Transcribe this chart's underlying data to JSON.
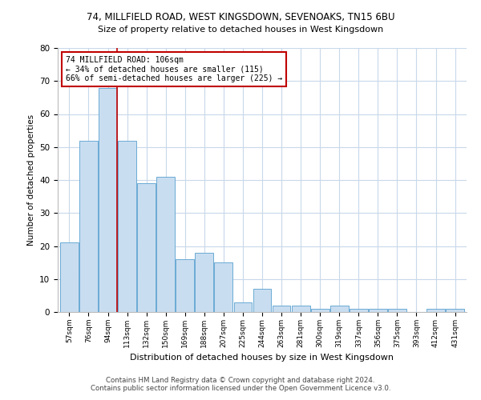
{
  "title1": "74, MILLFIELD ROAD, WEST KINGSDOWN, SEVENOAKS, TN15 6BU",
  "title2": "Size of property relative to detached houses in West Kingsdown",
  "xlabel": "Distribution of detached houses by size in West Kingsdown",
  "ylabel": "Number of detached properties",
  "categories": [
    "57sqm",
    "76sqm",
    "94sqm",
    "113sqm",
    "132sqm",
    "150sqm",
    "169sqm",
    "188sqm",
    "207sqm",
    "225sqm",
    "244sqm",
    "263sqm",
    "281sqm",
    "300sqm",
    "319sqm",
    "337sqm",
    "356sqm",
    "375sqm",
    "393sqm",
    "412sqm",
    "431sqm"
  ],
  "values": [
    21,
    52,
    68,
    52,
    39,
    41,
    16,
    18,
    15,
    3,
    7,
    2,
    2,
    1,
    2,
    1,
    1,
    1,
    0,
    1,
    1
  ],
  "bar_color": "#c9ddf0",
  "bar_edge_color": "#6aaad4",
  "property_bin_index": 2,
  "property_label": "74 MILLFIELD ROAD: 106sqm",
  "pct_smaller": 34,
  "n_smaller": 115,
  "pct_larger_semi": 66,
  "n_larger_semi": 225,
  "vline_color": "#c00000",
  "annotation_box_color": "#ffffff",
  "annotation_box_edge": "#c00000",
  "ylim": [
    0,
    80
  ],
  "yticks": [
    0,
    10,
    20,
    30,
    40,
    50,
    60,
    70,
    80
  ],
  "grid_color": "#c8d8ea",
  "footnote1": "Contains HM Land Registry data © Crown copyright and database right 2024.",
  "footnote2": "Contains public sector information licensed under the Open Government Licence v3.0."
}
